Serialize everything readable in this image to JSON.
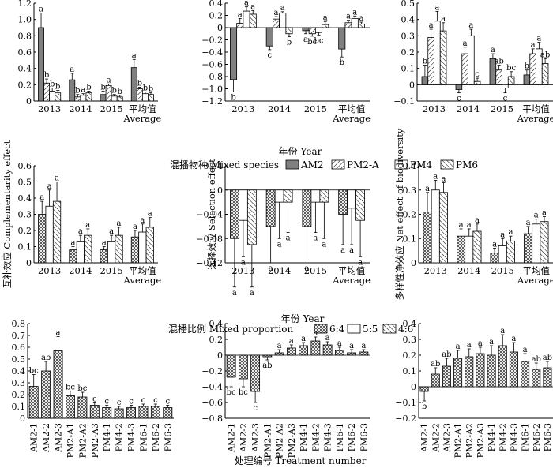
{
  "figure": {
    "row1_xlabel": "年份 Year",
    "row2_xlabel": "年份 Year",
    "row3_xlabel": "处理编号 Treatment number",
    "legend1": {
      "title": "混播物种 Mixed species",
      "items": [
        {
          "label": "AM2",
          "fill": "gray"
        },
        {
          "label": "PM2-A",
          "fill": "hatch-right"
        },
        {
          "label": "PM4",
          "fill": "white"
        },
        {
          "label": "PM6",
          "fill": "hatch-left"
        }
      ]
    },
    "legend2": {
      "title": "混播比例 Mixed proportion",
      "items": [
        {
          "label": "6:4",
          "fill": "cross"
        },
        {
          "label": "5:5",
          "fill": "white"
        },
        {
          "label": "4:6",
          "fill": "hatch-left"
        }
      ]
    },
    "colors": {
      "gray": "#808080",
      "line": "#000000"
    }
  },
  "chart_data": [
    {
      "id": "r1c1",
      "type": "bar",
      "categories": [
        "2013",
        "2014",
        "2015",
        "平均值|Average"
      ],
      "series": [
        {
          "name": "AM2",
          "values": [
            0.9,
            0.26,
            0.08,
            0.41
          ],
          "err": [
            0.18,
            0.08,
            0.04,
            0.1
          ],
          "sig": [
            "a",
            "a",
            "b",
            "a"
          ]
        },
        {
          "name": "PM2-A",
          "values": [
            0.22,
            0.05,
            0.19,
            0.15
          ],
          "err": [
            0.05,
            0.03,
            0.02,
            0.02
          ],
          "sig": [
            "b",
            "b",
            "a",
            "b"
          ]
        },
        {
          "name": "PM4",
          "values": [
            0.12,
            0.07,
            0.06,
            0.09
          ],
          "err": [
            0.04,
            0.02,
            0.02,
            0.02
          ],
          "sig": [
            "b",
            "a",
            "b",
            "b"
          ]
        },
        {
          "name": "PM6",
          "values": [
            0.1,
            0.1,
            0.05,
            0.08
          ],
          "err": [
            0.03,
            0.02,
            0.02,
            0.02
          ],
          "sig": [
            "b",
            "b",
            "b",
            "b"
          ]
        }
      ],
      "ylim": [
        0,
        1.2
      ],
      "ticks": [
        0,
        0.2,
        0.4,
        0.6,
        0.8,
        1.0,
        1.2
      ],
      "tick_labels": [
        "0",
        "0.2",
        "0.4",
        "0.6",
        "0.8",
        "1.0",
        "1.2"
      ],
      "ylabel": ""
    },
    {
      "id": "r1c2",
      "type": "bar",
      "categories": [
        "2013",
        "2014",
        "2015",
        "平均值|Average"
      ],
      "series": [
        {
          "name": "AM2",
          "values": [
            -0.85,
            -0.3,
            -0.05,
            -0.35
          ],
          "err": [
            0.2,
            0.06,
            0.05,
            0.13
          ],
          "sig": [
            "b",
            "c",
            "a",
            "b"
          ]
        },
        {
          "name": "PM2-A",
          "values": [
            0.07,
            0.14,
            -0.1,
            0.08
          ],
          "err": [
            0.08,
            0.04,
            0.04,
            0.04
          ],
          "sig": [
            "a",
            "a",
            "bc",
            "a"
          ]
        },
        {
          "name": "PM4",
          "values": [
            0.27,
            0.24,
            -0.08,
            0.15
          ],
          "err": [
            0.07,
            0.02,
            0.04,
            0.04
          ],
          "sig": [
            "a",
            "a",
            "bc",
            "a"
          ]
        },
        {
          "name": "PM6",
          "values": [
            0.22,
            -0.1,
            0.05,
            0.06
          ],
          "err": [
            0.06,
            0.05,
            0.05,
            0.03
          ],
          "sig": [
            "a",
            "b",
            "a",
            "a"
          ]
        }
      ],
      "ylim": [
        -1.2,
        0.4
      ],
      "ticks": [
        -1.2,
        -1.0,
        -0.8,
        -0.6,
        -0.4,
        -0.2,
        0,
        0.2,
        0.4
      ],
      "tick_labels": [
        "−1.2",
        "−1.0",
        "−0.8",
        "−0.6",
        "−0.4",
        "−0.2",
        "0",
        "0.2",
        "0.4"
      ],
      "ylabel": ""
    },
    {
      "id": "r1c3",
      "type": "bar",
      "categories": [
        "2013",
        "2014",
        "2015",
        "平均值|Average"
      ],
      "series": [
        {
          "name": "AM2",
          "values": [
            0.05,
            -0.03,
            0.16,
            0.06
          ],
          "err": [
            0.07,
            0.02,
            0.03,
            0.03
          ],
          "sig": [
            "b",
            "c",
            "a",
            "b"
          ]
        },
        {
          "name": "PM2-A",
          "values": [
            0.29,
            0.19,
            0.09,
            0.19
          ],
          "err": [
            0.05,
            0.04,
            0.03,
            0.03
          ],
          "sig": [
            "a",
            "a",
            "ab",
            "a"
          ]
        },
        {
          "name": "PM4",
          "values": [
            0.39,
            0.3,
            -0.02,
            0.22
          ],
          "err": [
            0.06,
            0.04,
            0.03,
            0.04
          ],
          "sig": [
            "a",
            "a",
            "c",
            "a"
          ]
        },
        {
          "name": "PM6",
          "values": [
            0.33,
            0.02,
            0.05,
            0.13
          ],
          "err": [
            0.05,
            0.02,
            0.03,
            0.03
          ],
          "sig": [
            "a",
            "c",
            "bc",
            "ab"
          ]
        }
      ],
      "ylim": [
        -0.1,
        0.5
      ],
      "ticks": [
        -0.1,
        0,
        0.1,
        0.2,
        0.3,
        0.4,
        0.5
      ],
      "tick_labels": [
        "−0.1",
        "0",
        "0.1",
        "0.2",
        "0.3",
        "0.4",
        "0.5"
      ],
      "ylabel": ""
    },
    {
      "id": "r2c1",
      "type": "bar",
      "categories": [
        "2013",
        "2014",
        "2015",
        "平均值|Average"
      ],
      "series": [
        {
          "name": "6:4",
          "values": [
            0.3,
            0.08,
            0.08,
            0.16
          ],
          "err": [
            0.08,
            0.02,
            0.02,
            0.04
          ],
          "sig": [
            "a",
            "a",
            "a",
            "a"
          ]
        },
        {
          "name": "5:5",
          "values": [
            0.35,
            0.13,
            0.13,
            0.19
          ],
          "err": [
            0.1,
            0.04,
            0.04,
            0.05
          ],
          "sig": [
            "a",
            "a",
            "a",
            "a"
          ]
        },
        {
          "name": "4:6",
          "values": [
            0.38,
            0.17,
            0.17,
            0.22
          ],
          "err": [
            0.12,
            0.04,
            0.05,
            0.06
          ],
          "sig": [
            "a",
            "a",
            "a",
            "a"
          ]
        }
      ],
      "ylim": [
        0,
        0.6
      ],
      "ticks": [
        0,
        0.1,
        0.2,
        0.3,
        0.4,
        0.5,
        0.6
      ],
      "tick_labels": [
        "0",
        "0.1",
        "0.2",
        "0.3",
        "0.4",
        "0.5",
        "0.6"
      ],
      "ylabel": "互补效应 Complementarity effect"
    },
    {
      "id": "r2c2",
      "type": "bar",
      "categories": [
        "2013",
        "2014",
        "2015",
        "平均值|Average"
      ],
      "series": [
        {
          "name": "6:4",
          "values": [
            -0.08,
            -0.06,
            -0.06,
            -0.04
          ],
          "err": [
            0.08,
            0.06,
            0.06,
            0.05
          ],
          "sig": [
            "a",
            "a",
            "a",
            "a"
          ]
        },
        {
          "name": "5:5",
          "values": [
            -0.05,
            -0.02,
            -0.02,
            -0.03
          ],
          "err": [
            0.06,
            0.06,
            0.05,
            0.06
          ],
          "sig": [
            "a",
            "a",
            "a",
            "a"
          ]
        },
        {
          "name": "4:6",
          "values": [
            -0.09,
            -0.02,
            -0.02,
            -0.05
          ],
          "err": [
            0.07,
            0.05,
            0.06,
            0.06
          ],
          "sig": [
            "a",
            "a",
            "a",
            "a"
          ]
        }
      ],
      "ylim": [
        -0.12,
        0.04
      ],
      "ticks": [
        -0.12,
        -0.08,
        -0.04,
        0,
        0.04
      ],
      "tick_labels": [
        "−0.12",
        "−0.08",
        "−0.04",
        "0",
        "0.04"
      ],
      "ylabel": "选择效应 Selection effect"
    },
    {
      "id": "r2c3",
      "type": "bar",
      "categories": [
        "2013",
        "2014",
        "2015",
        "平均值|Average"
      ],
      "series": [
        {
          "name": "6:4",
          "values": [
            0.21,
            0.11,
            0.04,
            0.12
          ],
          "err": [
            0.08,
            0.03,
            0.02,
            0.03
          ],
          "sig": [
            "a",
            "a",
            "a",
            "a"
          ]
        },
        {
          "name": "5:5",
          "values": [
            0.3,
            0.11,
            0.07,
            0.16
          ],
          "err": [
            0.04,
            0.03,
            0.03,
            0.02
          ],
          "sig": [
            "a",
            "a",
            "a",
            "a"
          ]
        },
        {
          "name": "4:6",
          "values": [
            0.29,
            0.13,
            0.09,
            0.17
          ],
          "err": [
            0.04,
            0.03,
            0.02,
            0.02
          ],
          "sig": [
            "a",
            "a",
            "a",
            "a"
          ]
        }
      ],
      "ylim": [
        0,
        0.4
      ],
      "ticks": [
        0,
        0.1,
        0.2,
        0.3,
        0.4
      ],
      "tick_labels": [
        "0",
        "0.1",
        "0.2",
        "0.3",
        "0.4"
      ],
      "ylabel": "多样性净效应 Net effect of biodiversity"
    },
    {
      "id": "r3c1",
      "type": "bar",
      "categories": [
        "AM2-1",
        "AM2-2",
        "AM2-3",
        "PM2-A1",
        "PM2-A2",
        "PM2-A3",
        "PM4-1",
        "PM4-2",
        "PM4-3",
        "PM6-1",
        "PM6-2",
        "PM6-3"
      ],
      "values": [
        0.27,
        0.4,
        0.57,
        0.19,
        0.18,
        0.11,
        0.09,
        0.08,
        0.09,
        0.1,
        0.1,
        0.09
      ],
      "err": [
        0.1,
        0.08,
        0.12,
        0.04,
        0.04,
        0.02,
        0.02,
        0.02,
        0.02,
        0.02,
        0.02,
        0.02
      ],
      "sig": [
        "bc",
        "ab",
        "a",
        "bc",
        "bc",
        "c",
        "c",
        "c",
        "c",
        "c",
        "c",
        "c"
      ],
      "ylim": [
        0,
        0.8
      ],
      "ticks": [
        0,
        0.1,
        0.2,
        0.3,
        0.4,
        0.5,
        0.6,
        0.7,
        0.8
      ],
      "tick_labels": [
        "0",
        "0.1",
        "0.2",
        "0.3",
        "0.4",
        "0.5",
        "0.6",
        "0.7",
        "0.8"
      ],
      "ylabel": ""
    },
    {
      "id": "r3c2",
      "type": "bar",
      "categories": [
        "AM2-1",
        "AM2-2",
        "AM2-3",
        "PM2-A1",
        "PM2-A2",
        "PM2-A3",
        "PM4-1",
        "PM4-2",
        "PM4-3",
        "PM6-1",
        "PM6-2",
        "PM6-3"
      ],
      "values": [
        -0.28,
        -0.3,
        -0.46,
        -0.02,
        0.03,
        0.09,
        0.12,
        0.18,
        0.13,
        0.06,
        0.03,
        0.04
      ],
      "err": [
        0.12,
        0.1,
        0.14,
        0.04,
        0.04,
        0.04,
        0.04,
        0.05,
        0.04,
        0.04,
        0.04,
        0.03
      ],
      "sig": [
        "bc",
        "bc",
        "c",
        "ab",
        "a",
        "a",
        "a",
        "a",
        "a",
        "a",
        "a",
        "a"
      ],
      "ylim": [
        -0.8,
        0.4
      ],
      "ticks": [
        -0.8,
        -0.6,
        -0.4,
        -0.2,
        0,
        0.2,
        0.4
      ],
      "tick_labels": [
        "−0.8",
        "−0.6",
        "−0.4",
        "−0.2",
        "0",
        "0.2",
        "0.4"
      ],
      "ylabel": ""
    },
    {
      "id": "r3c3",
      "type": "bar",
      "categories": [
        "AM2-1",
        "AM2-2",
        "AM2-3",
        "PM2-A1",
        "PM2-A2",
        "PM2-A3",
        "PM4-1",
        "PM4-2",
        "PM4-3",
        "PM6-1",
        "PM6-2",
        "PM6-3"
      ],
      "values": [
        -0.03,
        0.08,
        0.13,
        0.18,
        0.19,
        0.21,
        0.2,
        0.26,
        0.22,
        0.16,
        0.11,
        0.12
      ],
      "err": [
        0.06,
        0.04,
        0.05,
        0.05,
        0.05,
        0.04,
        0.06,
        0.07,
        0.06,
        0.05,
        0.04,
        0.04
      ],
      "sig": [
        "b",
        "ab",
        "ab",
        "a",
        "a",
        "a",
        "a",
        "a",
        "a",
        "a",
        "ab",
        "ab"
      ],
      "ylim": [
        -0.2,
        0.4
      ],
      "ticks": [
        -0.2,
        -0.1,
        0,
        0.1,
        0.2,
        0.3,
        0.4
      ],
      "tick_labels": [
        "−0.2",
        "−0.1",
        "0",
        "0.1",
        "0.2",
        "0.3",
        "0.4"
      ],
      "ylabel": ""
    }
  ]
}
